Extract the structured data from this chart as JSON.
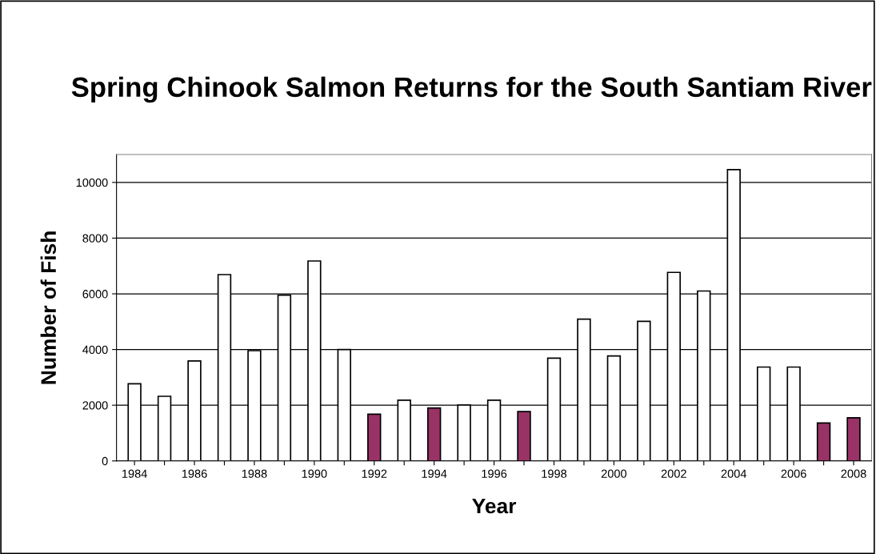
{
  "chart_data": {
    "type": "bar",
    "title": "Spring Chinook Salmon Returns for the South Santiam River",
    "xlabel": "Year",
    "ylabel": "Number of Fish",
    "categories": [
      "1984",
      null,
      "1986",
      null,
      "1988",
      null,
      "1990",
      null,
      "1992",
      null,
      "1994",
      null,
      "1996",
      null,
      "1998",
      null,
      "2000",
      null,
      "2002",
      null,
      "2004",
      null,
      "2006",
      null,
      "2008"
    ],
    "values": [
      2770,
      2320,
      3590,
      6690,
      3960,
      5950,
      7180,
      4000,
      1680,
      2180,
      1900,
      2010,
      2180,
      1770,
      3690,
      5090,
      3770,
      5010,
      6770,
      6100,
      10460,
      3370,
      3370,
      1360,
      1550
    ],
    "colors": [
      "#ffffff",
      "#ffffff",
      "#ffffff",
      "#ffffff",
      "#ffffff",
      "#ffffff",
      "#ffffff",
      "#ffffff",
      "#993366",
      "#ffffff",
      "#993366",
      "#ffffff",
      "#ffffff",
      "#993366",
      "#ffffff",
      "#ffffff",
      "#ffffff",
      "#ffffff",
      "#ffffff",
      "#ffffff",
      "#ffffff",
      "#ffffff",
      "#ffffff",
      "#993366",
      "#993366"
    ],
    "ylim": [
      0,
      11000
    ],
    "yticks": [
      0,
      2000,
      4000,
      6000,
      8000,
      10000
    ],
    "grid": "y"
  }
}
